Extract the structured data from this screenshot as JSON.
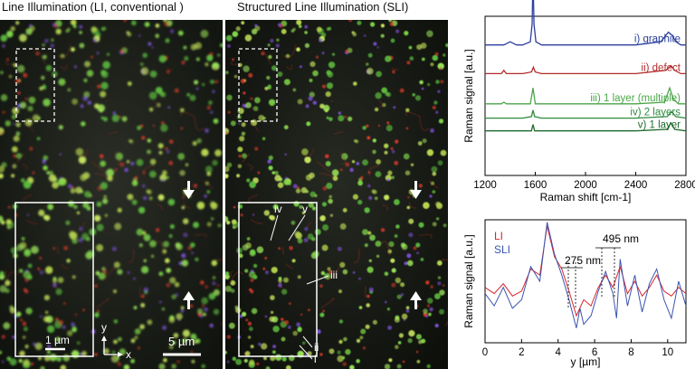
{
  "left_panel": {
    "title": "Line Illumination (LI, conventional )",
    "scale_inset": "1 µm",
    "scale_main": "5 µm",
    "axis_y": "y",
    "axis_x": "x"
  },
  "right_panel": {
    "title": "Structured Line Illumination (SLI)",
    "markers": [
      "iv",
      "v",
      "iii",
      "ii",
      "i"
    ]
  },
  "chart_data": [
    {
      "type": "line",
      "xlabel": "Raman shift [cm-1]",
      "ylabel": "Raman signal [a.u.]",
      "xlim": [
        1200,
        2800
      ],
      "xticks": [
        1200,
        1600,
        2000,
        2400,
        2800
      ],
      "series": [
        {
          "name": "i) graphite",
          "color": "#2b3f9e",
          "x": [
            1200,
            1350,
            1400,
            1450,
            1500,
            1560,
            1575,
            1582,
            1590,
            1605,
            1650,
            2000,
            2400,
            2600,
            2660,
            2690,
            2720,
            2760,
            2800
          ],
          "y": [
            0.82,
            0.82,
            0.84,
            0.82,
            0.82,
            0.84,
            0.95,
            1.25,
            0.95,
            0.84,
            0.82,
            0.82,
            0.82,
            0.84,
            0.9,
            0.88,
            0.84,
            0.82,
            0.82
          ]
        },
        {
          "name": "ii) defect",
          "color": "#b22a2a",
          "x": [
            1200,
            1330,
            1350,
            1370,
            1500,
            1570,
            1585,
            1600,
            1650,
            2000,
            2400,
            2640,
            2680,
            2710,
            2760,
            2800
          ],
          "y": [
            0.64,
            0.64,
            0.66,
            0.64,
            0.64,
            0.65,
            0.68,
            0.65,
            0.64,
            0.64,
            0.64,
            0.66,
            0.69,
            0.66,
            0.64,
            0.64
          ]
        },
        {
          "name": "iii) 1 layer (multiple)",
          "color": "#4aa64a",
          "x": [
            1200,
            1330,
            1350,
            1370,
            1560,
            1582,
            1600,
            1650,
            2000,
            2400,
            2630,
            2670,
            2700,
            2740,
            2800
          ],
          "y": [
            0.45,
            0.45,
            0.46,
            0.45,
            0.45,
            0.55,
            0.45,
            0.45,
            0.45,
            0.45,
            0.46,
            0.55,
            0.48,
            0.45,
            0.45
          ]
        },
        {
          "name": "iv) 2 layers",
          "color": "#2e8b3e",
          "x": [
            1200,
            1500,
            1570,
            1582,
            1595,
            1650,
            2000,
            2400,
            2650,
            2685,
            2720,
            2800
          ],
          "y": [
            0.36,
            0.36,
            0.37,
            0.41,
            0.37,
            0.36,
            0.36,
            0.36,
            0.37,
            0.4,
            0.37,
            0.36
          ]
        },
        {
          "name": "v) 1 layer",
          "color": "#1f6b2c",
          "x": [
            1200,
            1570,
            1582,
            1595,
            1650,
            2000,
            2400,
            2650,
            2680,
            2710,
            2800
          ],
          "y": [
            0.28,
            0.28,
            0.32,
            0.28,
            0.28,
            0.28,
            0.28,
            0.29,
            0.33,
            0.29,
            0.28
          ]
        }
      ]
    },
    {
      "type": "line",
      "xlabel": "y [µm]",
      "ylabel": "Raman signal [a.u.]",
      "xlim": [
        0,
        11
      ],
      "xticks": [
        0,
        2,
        4,
        6,
        8,
        10
      ],
      "annotations": [
        "495 nm",
        "275 nm"
      ],
      "series": [
        {
          "name": "LI",
          "color": "#d9262e",
          "x": [
            0,
            0.5,
            1,
            1.5,
            2,
            2.5,
            3,
            3.4,
            3.8,
            4.2,
            4.6,
            5,
            5.4,
            5.8,
            6.2,
            6.6,
            7,
            7.4,
            7.8,
            8.2,
            8.6,
            9,
            9.4,
            9.8,
            10.2,
            10.6,
            11
          ],
          "y": [
            0.45,
            0.4,
            0.48,
            0.38,
            0.42,
            0.6,
            0.55,
            0.95,
            0.7,
            0.6,
            0.42,
            0.22,
            0.35,
            0.3,
            0.45,
            0.55,
            0.45,
            0.62,
            0.4,
            0.5,
            0.38,
            0.45,
            0.55,
            0.42,
            0.38,
            0.45,
            0.4
          ]
        },
        {
          "name": "SLI",
          "color": "#3a55b0",
          "x": [
            0,
            0.5,
            1,
            1.5,
            2,
            2.5,
            3,
            3.4,
            3.8,
            4.2,
            4.6,
            5,
            5.2,
            5.4,
            5.8,
            6.2,
            6.6,
            7,
            7.2,
            7.4,
            7.8,
            8.2,
            8.6,
            9,
            9.4,
            9.8,
            10.2,
            10.6,
            11
          ],
          "y": [
            0.4,
            0.3,
            0.45,
            0.28,
            0.35,
            0.62,
            0.5,
            0.98,
            0.72,
            0.55,
            0.35,
            0.12,
            0.28,
            0.15,
            0.22,
            0.42,
            0.58,
            0.4,
            0.2,
            0.68,
            0.3,
            0.55,
            0.25,
            0.48,
            0.6,
            0.35,
            0.2,
            0.5,
            0.3
          ]
        }
      ]
    }
  ]
}
